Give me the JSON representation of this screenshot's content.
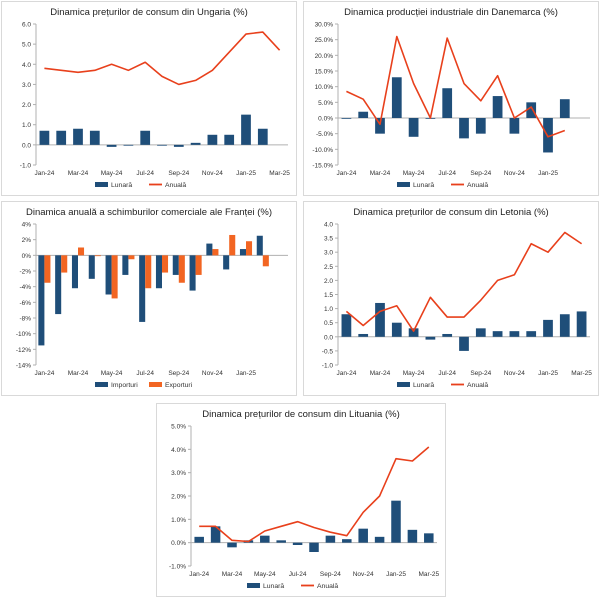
{
  "colors": {
    "monthly": "#1f4e79",
    "annual": "#e8401c",
    "imports": "#1f4e79",
    "exports": "#f26522",
    "axis": "#b0b0b0",
    "grid": "#e6e6e6",
    "text": "#333333"
  },
  "chart_data": [
    {
      "id": "p1",
      "type": "bar+line",
      "title": "Dinamica prețurilor de consum din Ungaria (%)",
      "months": 15,
      "tick_labels": [
        "Jan-24",
        "Mar-24",
        "May-24",
        "Jul-24",
        "Sep-24",
        "Nov-24",
        "Jan-25",
        "Mar-25"
      ],
      "ylim": [
        -1.0,
        6.0
      ],
      "yticks": [
        -1.0,
        0.0,
        1.0,
        2.0,
        3.0,
        4.0,
        5.0,
        6.0
      ],
      "y_decimals": 1,
      "y_suffix": "",
      "bar_series": [
        {
          "name": "Lunară",
          "color": "#1f4e79",
          "values": [
            0.7,
            0.7,
            0.8,
            0.7,
            -0.1,
            0.0,
            0.7,
            0.0,
            -0.1,
            0.1,
            0.5,
            0.5,
            1.5,
            0.8,
            null
          ]
        }
      ],
      "line_series": [
        {
          "name": "Anuală",
          "color": "#e8401c",
          "values": [
            3.8,
            3.7,
            3.6,
            3.7,
            4.0,
            3.7,
            4.1,
            3.4,
            3.0,
            3.2,
            3.7,
            4.6,
            5.5,
            5.6,
            4.7
          ]
        }
      ],
      "legend": [
        "Lunară",
        "Anuală"
      ]
    },
    {
      "id": "p2",
      "type": "bar+line",
      "title": "Dinamica producției industriale din Danemarca (%)",
      "months": 15,
      "tick_labels": [
        "Jan-24",
        "Mar-24",
        "May-24",
        "Jul-24",
        "Sep-24",
        "Nov-24",
        "Jan-25"
      ],
      "ylim": [
        -15,
        30
      ],
      "yticks": [
        -15,
        -10,
        -5,
        0,
        5,
        10,
        15,
        20,
        25,
        30
      ],
      "y_decimals": 1,
      "y_suffix": "%",
      "bar_series": [
        {
          "name": "Lunară",
          "color": "#1f4e79",
          "values": [
            -0.2,
            2.0,
            -5.0,
            13.0,
            -6.0,
            0.0,
            9.5,
            -6.5,
            -5.0,
            7.0,
            -5.0,
            5.0,
            -11.0,
            6.0,
            null
          ]
        }
      ],
      "line_series": [
        {
          "name": "Anuală",
          "color": "#e8401c",
          "values": [
            8.5,
            6.0,
            -2.0,
            26.0,
            11.0,
            0.0,
            25.5,
            11.0,
            5.5,
            13.5,
            0.0,
            3.5,
            -6.0,
            -4.0,
            null
          ]
        }
      ],
      "legend": [
        "Lunară",
        "Anuală"
      ]
    },
    {
      "id": "p3",
      "type": "bar",
      "title": "Dinamica anuală a schimburilor comerciale ale Franței (%)",
      "months": 15,
      "tick_labels": [
        "Jan-24",
        "Mar-24",
        "May-24",
        "Jul-24",
        "Sep-24",
        "Nov-24",
        "Jan-25"
      ],
      "ylim": [
        -14,
        4
      ],
      "yticks": [
        -14,
        -12,
        -10,
        -8,
        -6,
        -4,
        -2,
        0,
        2,
        4
      ],
      "y_decimals": 0,
      "y_suffix": "%",
      "bar_series": [
        {
          "name": "Importuri",
          "color": "#1f4e79",
          "values": [
            -11.5,
            -7.5,
            -4.2,
            -3.0,
            -5.0,
            -2.5,
            -8.5,
            -4.2,
            -2.5,
            -4.5,
            1.5,
            -1.8,
            0.8,
            2.5,
            null
          ]
        },
        {
          "name": "Exporturi",
          "color": "#f26522",
          "values": [
            -3.5,
            -2.2,
            1.0,
            0.0,
            -5.5,
            -0.5,
            -4.2,
            -2.2,
            -3.5,
            -2.5,
            0.8,
            2.6,
            1.8,
            -1.4,
            null
          ]
        }
      ],
      "line_series": [],
      "legend": [
        "Importuri",
        "Exporturi"
      ]
    },
    {
      "id": "p4",
      "type": "bar+line",
      "title": "Dinamica prețurilor de consum din Letonia (%)",
      "months": 15,
      "tick_labels": [
        "Jan-24",
        "Mar-24",
        "May-24",
        "Jul-24",
        "Sep-24",
        "Nov-24",
        "Jan-25",
        "Mar-25"
      ],
      "ylim": [
        -1.0,
        4.0
      ],
      "yticks": [
        -1.0,
        -0.5,
        0.0,
        0.5,
        1.0,
        1.5,
        2.0,
        2.5,
        3.0,
        3.5,
        4.0
      ],
      "y_decimals": 1,
      "y_suffix": "",
      "bar_series": [
        {
          "name": "Lunară",
          "color": "#1f4e79",
          "values": [
            0.8,
            0.1,
            1.2,
            0.5,
            0.3,
            -0.1,
            0.1,
            -0.5,
            0.3,
            0.2,
            0.2,
            0.2,
            0.6,
            0.8,
            0.9
          ]
        }
      ],
      "line_series": [
        {
          "name": "Anuală",
          "color": "#e8401c",
          "values": [
            0.9,
            0.4,
            0.9,
            1.1,
            0.2,
            1.4,
            0.7,
            0.7,
            1.3,
            2.0,
            2.2,
            3.3,
            3.0,
            3.7,
            3.3
          ]
        }
      ],
      "legend": [
        "Lunară",
        "Anuală"
      ]
    },
    {
      "id": "p5",
      "type": "bar+line",
      "title": "Dinamica prețurilor de consum din Lituania (%)",
      "months": 15,
      "tick_labels": [
        "Jan-24",
        "Mar-24",
        "May-24",
        "Jul-24",
        "Sep-24",
        "Nov-24",
        "Jan-25",
        "Mar-25"
      ],
      "ylim": [
        -1.0,
        5.0
      ],
      "yticks": [
        -1.0,
        0.0,
        1.0,
        2.0,
        3.0,
        4.0,
        5.0
      ],
      "y_decimals": 1,
      "y_suffix": "%",
      "bar_series": [
        {
          "name": "Lunară",
          "color": "#1f4e79",
          "values": [
            0.25,
            0.7,
            -0.2,
            0.1,
            0.3,
            0.1,
            -0.1,
            -0.4,
            0.3,
            0.15,
            0.6,
            0.25,
            1.8,
            0.55,
            0.4
          ]
        }
      ],
      "line_series": [
        {
          "name": "Anuală",
          "color": "#e8401c",
          "values": [
            0.7,
            0.7,
            0.1,
            0.05,
            0.5,
            0.7,
            0.9,
            0.65,
            0.45,
            0.3,
            1.3,
            2.0,
            3.6,
            3.5,
            4.1
          ]
        }
      ],
      "legend": [
        "Lunară",
        "Anuală"
      ]
    }
  ]
}
